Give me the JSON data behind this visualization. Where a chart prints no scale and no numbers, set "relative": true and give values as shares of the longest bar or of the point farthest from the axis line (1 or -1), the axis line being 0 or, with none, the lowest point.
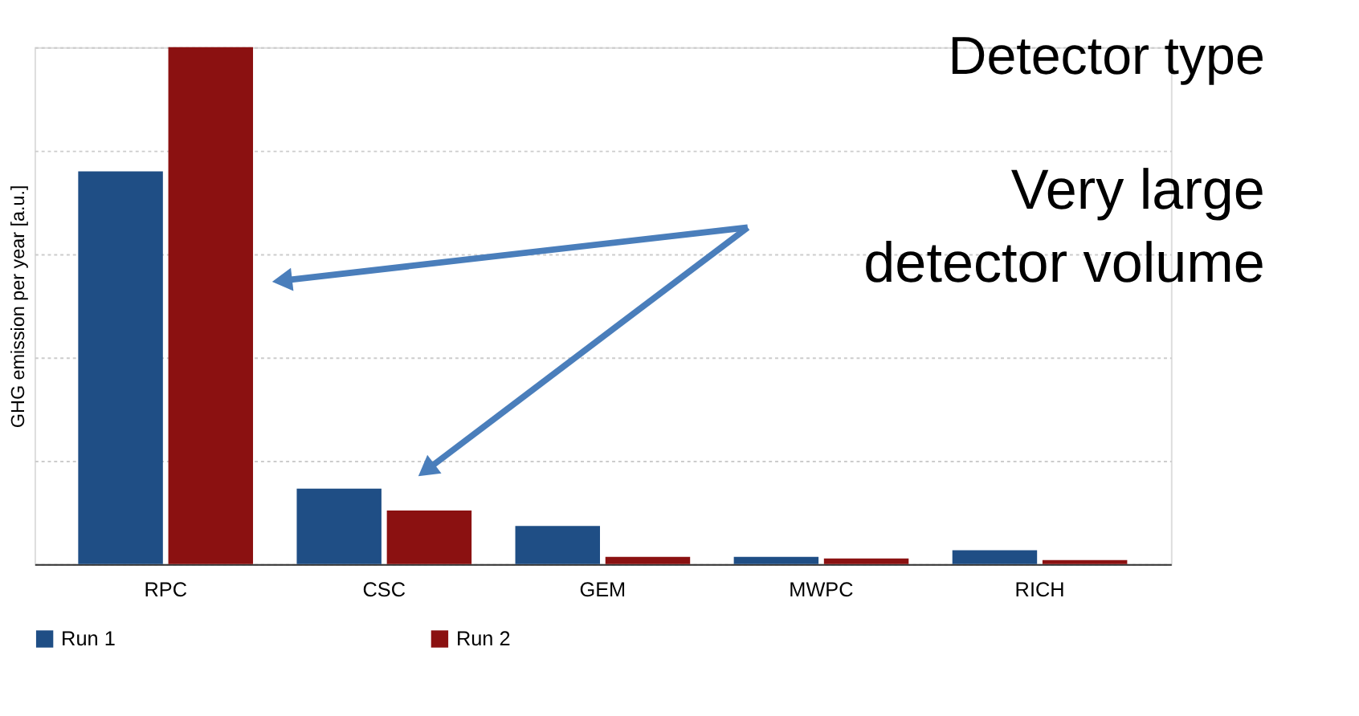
{
  "chart_data": {
    "type": "bar",
    "relative": true,
    "ylabel": "GHG emission per year [a.u.]",
    "categories": [
      "RPC",
      "CSC",
      "GEM",
      "MWPC",
      "RICH"
    ],
    "series": [
      {
        "name": "Run 1",
        "color": "#1f4e85",
        "values": [
          0.76,
          0.146,
          0.074,
          0.014,
          0.027
        ]
      },
      {
        "name": "Run 2",
        "color": "#8b1111",
        "values": [
          1.0,
          0.104,
          0.014,
          0.011,
          0.008
        ]
      }
    ],
    "grid": "y",
    "legend": "bottom",
    "annotations": [
      "Detector type",
      "Very large\ndetector volume"
    ]
  }
}
